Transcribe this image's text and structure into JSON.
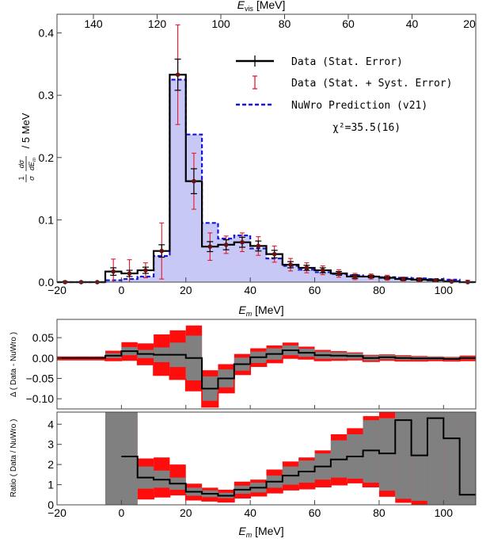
{
  "chart_data": [
    {
      "type": "histogram",
      "top_axis_label": "E",
      "top_axis_sub": "vis",
      "top_axis_unit": " [MeV]",
      "top_ticks": [
        "140",
        "120",
        "100",
        "80",
        "60",
        "40",
        "20"
      ],
      "xlabel": "E",
      "xlabel_sub": "m",
      "xlabel_unit": " [MeV]",
      "ylabel": "1/σ dσ/dEm / 5 MeV",
      "xlim": [
        -20,
        110
      ],
      "ylim": [
        0,
        0.43
      ],
      "x_ticks": [
        "-20",
        "0",
        "20",
        "40",
        "60",
        "80",
        "100"
      ],
      "y_ticks": [
        "0.0",
        "0.1",
        "0.2",
        "0.3",
        "0.4"
      ],
      "legend": {
        "data_stat": "Data  (Stat. Error)",
        "data_syst": "Data  (Stat. + Syst. Error)",
        "nuwro": "NuWro  Prediction  (v21)",
        "chi2": "χ²=35.5(16)"
      },
      "bin_edges": [
        -20,
        -15,
        -10,
        -5,
        0,
        5,
        10,
        15,
        20,
        25,
        30,
        35,
        40,
        45,
        50,
        55,
        60,
        65,
        70,
        75,
        80,
        85,
        90,
        95,
        100,
        105,
        110
      ],
      "data_values": [
        0.0,
        0.0,
        0.0,
        0.017,
        0.014,
        0.019,
        0.05,
        0.333,
        0.162,
        0.057,
        0.06,
        0.064,
        0.058,
        0.045,
        0.028,
        0.023,
        0.019,
        0.014,
        0.009,
        0.009,
        0.007,
        0.005,
        0.004,
        0.003,
        0.001,
        0.0
      ],
      "stat_errors": [
        0.0,
        0.0,
        0.0,
        0.006,
        0.005,
        0.005,
        0.01,
        0.025,
        0.02,
        0.008,
        0.008,
        0.008,
        0.008,
        0.006,
        0.005,
        0.004,
        0.004,
        0.003,
        0.003,
        0.002,
        0.002,
        0.002,
        0.002,
        0.002,
        0.001,
        0.0
      ],
      "syst_errors": [
        0.002,
        0.0,
        0.0,
        0.02,
        0.022,
        0.012,
        0.045,
        0.08,
        0.045,
        0.022,
        0.014,
        0.015,
        0.015,
        0.013,
        0.01,
        0.008,
        0.007,
        0.006,
        0.005,
        0.004,
        0.004,
        0.003,
        0.003,
        0.002,
        0.002,
        0.003
      ],
      "nuwro_values": [
        0.0,
        0.0,
        0.0,
        0.003,
        0.005,
        0.009,
        0.042,
        0.325,
        0.237,
        0.095,
        0.07,
        0.075,
        0.054,
        0.038,
        0.026,
        0.02,
        0.016,
        0.013,
        0.011,
        0.009,
        0.008,
        0.007,
        0.006,
        0.005,
        0.004,
        0.0
      ]
    },
    {
      "type": "band",
      "ylabel": "Δ ( Data - NuWro )",
      "xlim": [
        -20,
        110
      ],
      "ylim": [
        -0.125,
        0.095
      ],
      "y_ticks": [
        "0.05",
        "0.00",
        "-0.05",
        "-0.10"
      ],
      "y_tick_values": [
        0.05,
        0.0,
        -0.05,
        -0.1
      ],
      "bin_edges": [
        -20,
        -15,
        -10,
        -5,
        0,
        5,
        10,
        15,
        20,
        25,
        30,
        35,
        40,
        45,
        50,
        55,
        60,
        65,
        70,
        75,
        80,
        85,
        90,
        95,
        100,
        105,
        110
      ],
      "central": [
        0.0,
        0.0,
        0.0,
        0.006,
        0.017,
        0.01,
        0.008,
        0.008,
        0.0,
        -0.075,
        -0.05,
        -0.015,
        0.002,
        0.01,
        0.019,
        0.013,
        0.007,
        0.006,
        0.005,
        0.0,
        0.002,
        0.0,
        -0.001,
        -0.001,
        -0.002,
        0.0
      ],
      "stat_half": [
        0.002,
        0.002,
        0.002,
        0.006,
        0.01,
        0.01,
        0.018,
        0.03,
        0.055,
        0.03,
        0.022,
        0.016,
        0.014,
        0.014,
        0.012,
        0.01,
        0.009,
        0.008,
        0.007,
        0.006,
        0.005,
        0.005,
        0.004,
        0.004,
        0.004,
        0.003
      ],
      "total_half": [
        0.004,
        0.004,
        0.004,
        0.012,
        0.022,
        0.026,
        0.05,
        0.06,
        0.08,
        0.045,
        0.035,
        0.025,
        0.022,
        0.021,
        0.019,
        0.015,
        0.013,
        0.011,
        0.009,
        0.008,
        0.007,
        0.007,
        0.006,
        0.005,
        0.005,
        0.006
      ]
    },
    {
      "type": "band",
      "ylabel": "Ratio ( Data / NuWro )",
      "xlim": [
        -20,
        110
      ],
      "ylim": [
        0,
        4.6
      ],
      "y_ticks": [
        "0",
        "1",
        "2",
        "3",
        "4"
      ],
      "y_tick_values": [
        0,
        1,
        2,
        3,
        4
      ],
      "x_ticks": [
        "-20",
        "0",
        "20",
        "40",
        "60",
        "80",
        "100"
      ],
      "xlabel": "E",
      "xlabel_sub": "m",
      "xlabel_unit": " [MeV]",
      "bin_edges": [
        -5,
        0,
        5,
        10,
        15,
        20,
        25,
        30,
        35,
        40,
        45,
        50,
        55,
        60,
        65,
        70,
        75,
        80,
        85,
        90,
        95,
        100,
        105,
        110
      ],
      "central": [
        null,
        2.4,
        1.35,
        1.25,
        1.05,
        0.65,
        0.55,
        0.45,
        0.75,
        0.85,
        1.15,
        1.45,
        1.65,
        1.9,
        2.25,
        2.4,
        2.7,
        2.55,
        4.2,
        2.45,
        4.3,
        3.3,
        0.5,
        0.5
      ],
      "stat_band": [
        [
          0,
          4.6
        ],
        [
          0,
          4.6
        ],
        [
          0.8,
          1.9
        ],
        [
          0.85,
          1.7
        ],
        [
          0.75,
          1.35
        ],
        [
          0.45,
          0.85
        ],
        [
          0.38,
          0.72
        ],
        [
          0.33,
          0.6
        ],
        [
          0.55,
          0.95
        ],
        [
          0.62,
          1.1
        ],
        [
          0.85,
          1.45
        ],
        [
          1.0,
          1.9
        ],
        [
          1.1,
          2.2
        ],
        [
          1.25,
          2.55
        ],
        [
          1.35,
          3.2
        ],
        [
          1.3,
          3.5
        ],
        [
          1.1,
          4.2
        ],
        [
          0.7,
          4.3
        ],
        [
          0.3,
          4.6
        ],
        [
          0.2,
          4.6
        ],
        [
          0,
          4.6
        ],
        [
          0,
          4.6
        ],
        [
          0,
          4.6
        ],
        [
          0,
          3.9
        ]
      ],
      "total_band": [
        [
          0,
          4.6
        ],
        [
          0,
          4.6
        ],
        [
          0.3,
          2.3
        ],
        [
          0.4,
          2.35
        ],
        [
          0.5,
          2.0
        ],
        [
          0.25,
          1.05
        ],
        [
          0.2,
          0.85
        ],
        [
          0.15,
          0.75
        ],
        [
          0.35,
          1.15
        ],
        [
          0.45,
          1.25
        ],
        [
          0.6,
          1.75
        ],
        [
          0.75,
          2.15
        ],
        [
          0.8,
          2.35
        ],
        [
          0.9,
          2.7
        ],
        [
          1.0,
          3.5
        ],
        [
          1.1,
          3.8
        ],
        [
          0.9,
          4.4
        ],
        [
          0.4,
          4.6
        ],
        [
          0.1,
          4.6
        ],
        [
          0.0,
          4.6
        ],
        [
          0,
          4.6
        ],
        [
          0,
          4.6
        ],
        [
          0,
          4.6
        ],
        [
          0,
          4.6
        ]
      ]
    }
  ]
}
